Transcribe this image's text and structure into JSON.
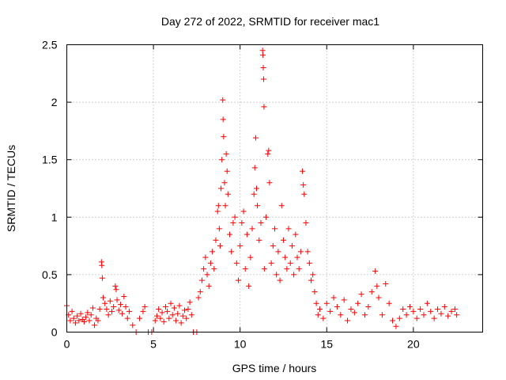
{
  "chart_data": {
    "type": "scatter",
    "title": "Day 272 of 2022, SRMTID for receiver mac1",
    "xlabel": "GPS time / hours",
    "ylabel": "SRMTID / TECUs",
    "xlim": [
      0,
      24
    ],
    "ylim": [
      0,
      2.5
    ],
    "xticks": [
      0,
      5,
      10,
      15,
      20
    ],
    "xtick_labels": [
      "0",
      "5",
      "10",
      "15",
      "20"
    ],
    "yticks": [
      0,
      0.5,
      1,
      1.5,
      2,
      2.5
    ],
    "ytick_labels": [
      "0",
      "0.5",
      "1",
      "1.5",
      "2",
      "2.5"
    ],
    "grid": true,
    "marker": "+",
    "color": "#ff0000",
    "series": [
      {
        "name": "SRMTID",
        "points": [
          [
            0.0,
            0.23
          ],
          [
            0.1,
            0.15
          ],
          [
            0.2,
            0.1
          ],
          [
            0.3,
            0.18
          ],
          [
            0.4,
            0.12
          ],
          [
            0.5,
            0.08
          ],
          [
            0.6,
            0.14
          ],
          [
            0.7,
            0.1
          ],
          [
            0.8,
            0.16
          ],
          [
            0.9,
            0.11
          ],
          [
            1.0,
            0.09
          ],
          [
            1.1,
            0.13
          ],
          [
            1.2,
            0.17
          ],
          [
            1.3,
            0.1
          ],
          [
            1.4,
            0.15
          ],
          [
            1.5,
            0.21
          ],
          [
            1.6,
            0.06
          ],
          [
            1.7,
            0.12
          ],
          [
            1.8,
            0.1
          ],
          [
            1.9,
            0.2
          ],
          [
            2.0,
            0.61
          ],
          [
            2.02,
            0.58
          ],
          [
            2.05,
            0.47
          ],
          [
            2.1,
            0.3
          ],
          [
            2.2,
            0.25
          ],
          [
            2.3,
            0.2
          ],
          [
            2.4,
            0.15
          ],
          [
            2.5,
            0.27
          ],
          [
            2.6,
            0.18
          ],
          [
            2.7,
            0.22
          ],
          [
            2.8,
            0.4
          ],
          [
            2.85,
            0.37
          ],
          [
            2.9,
            0.28
          ],
          [
            3.0,
            0.19
          ],
          [
            3.1,
            0.24
          ],
          [
            3.2,
            0.16
          ],
          [
            3.3,
            0.31
          ],
          [
            3.4,
            0.22
          ],
          [
            3.5,
            0.12
          ],
          [
            3.6,
            0.18
          ],
          [
            3.8,
            0.06
          ],
          [
            4.0,
            0.0
          ],
          [
            4.2,
            0.12
          ],
          [
            4.4,
            0.18
          ],
          [
            4.5,
            0.22
          ],
          [
            4.7,
            0.0
          ],
          [
            4.9,
            0.0
          ],
          [
            5.1,
            0.1
          ],
          [
            5.2,
            0.14
          ],
          [
            5.3,
            0.2
          ],
          [
            5.4,
            0.12
          ],
          [
            5.5,
            0.17
          ],
          [
            5.6,
            0.09
          ],
          [
            5.7,
            0.22
          ],
          [
            5.8,
            0.18
          ],
          [
            5.9,
            0.12
          ],
          [
            6.0,
            0.25
          ],
          [
            6.1,
            0.15
          ],
          [
            6.2,
            0.21
          ],
          [
            6.3,
            0.1
          ],
          [
            6.4,
            0.16
          ],
          [
            6.5,
            0.23
          ],
          [
            6.6,
            0.08
          ],
          [
            6.7,
            0.14
          ],
          [
            6.8,
            0.19
          ],
          [
            6.9,
            0.12
          ],
          [
            7.0,
            0.2
          ],
          [
            7.1,
            0.26
          ],
          [
            7.2,
            0.15
          ],
          [
            7.3,
            0.0
          ],
          [
            7.5,
            0.0
          ],
          [
            7.6,
            0.3
          ],
          [
            7.7,
            0.35
          ],
          [
            7.8,
            0.45
          ],
          [
            7.9,
            0.55
          ],
          [
            8.0,
            0.65
          ],
          [
            8.1,
            0.5
          ],
          [
            8.2,
            0.4
          ],
          [
            8.3,
            0.6
          ],
          [
            8.4,
            0.7
          ],
          [
            8.5,
            0.55
          ],
          [
            8.6,
            0.8
          ],
          [
            8.7,
            1.05
          ],
          [
            8.75,
            1.1
          ],
          [
            8.8,
            0.9
          ],
          [
            8.85,
            0.75
          ],
          [
            8.9,
            1.25
          ],
          [
            8.95,
            1.5
          ],
          [
            9.0,
            2.02
          ],
          [
            9.02,
            1.85
          ],
          [
            9.05,
            1.7
          ],
          [
            9.1,
            1.3
          ],
          [
            9.15,
            1.1
          ],
          [
            9.2,
            1.55
          ],
          [
            9.25,
            1.4
          ],
          [
            9.3,
            1.2
          ],
          [
            9.4,
            0.85
          ],
          [
            9.5,
            0.7
          ],
          [
            9.6,
            0.95
          ],
          [
            9.7,
            1.0
          ],
          [
            9.8,
            0.6
          ],
          [
            9.9,
            0.45
          ],
          [
            10.0,
            0.75
          ],
          [
            10.1,
            0.95
          ],
          [
            10.2,
            1.05
          ],
          [
            10.3,
            0.55
          ],
          [
            10.4,
            0.85
          ],
          [
            10.5,
            0.4
          ],
          [
            10.6,
            0.65
          ],
          [
            10.7,
            0.9
          ],
          [
            10.8,
            1.2
          ],
          [
            10.85,
            1.43
          ],
          [
            10.9,
            1.69
          ],
          [
            10.95,
            1.25
          ],
          [
            11.0,
            1.1
          ],
          [
            11.1,
            0.8
          ],
          [
            11.2,
            0.95
          ],
          [
            11.3,
            2.45
          ],
          [
            11.32,
            2.41
          ],
          [
            11.34,
            2.3
          ],
          [
            11.36,
            2.2
          ],
          [
            11.38,
            1.96
          ],
          [
            11.4,
            0.55
          ],
          [
            11.5,
            1.0
          ],
          [
            11.6,
            1.55
          ],
          [
            11.65,
            1.58
          ],
          [
            11.7,
            1.3
          ],
          [
            11.8,
            0.6
          ],
          [
            11.9,
            0.75
          ],
          [
            12.0,
            0.9
          ],
          [
            12.1,
            0.5
          ],
          [
            12.2,
            0.7
          ],
          [
            12.3,
            0.45
          ],
          [
            12.4,
            1.1
          ],
          [
            12.5,
            0.8
          ],
          [
            12.6,
            0.65
          ],
          [
            12.7,
            0.55
          ],
          [
            12.8,
            0.9
          ],
          [
            12.9,
            0.6
          ],
          [
            13.0,
            0.75
          ],
          [
            13.1,
            0.5
          ],
          [
            13.2,
            0.85
          ],
          [
            13.3,
            0.65
          ],
          [
            13.4,
            0.55
          ],
          [
            13.5,
            0.7
          ],
          [
            13.6,
            1.4
          ],
          [
            13.65,
            1.28
          ],
          [
            13.7,
            1.2
          ],
          [
            13.8,
            0.95
          ],
          [
            13.9,
            0.7
          ],
          [
            14.0,
            0.6
          ],
          [
            14.1,
            0.45
          ],
          [
            14.2,
            0.5
          ],
          [
            14.3,
            0.35
          ],
          [
            14.4,
            0.25
          ],
          [
            14.5,
            0.15
          ],
          [
            14.6,
            0.2
          ],
          [
            14.8,
            0.12
          ],
          [
            15.0,
            0.25
          ],
          [
            15.2,
            0.18
          ],
          [
            15.4,
            0.3
          ],
          [
            15.6,
            0.22
          ],
          [
            15.8,
            0.15
          ],
          [
            16.0,
            0.28
          ],
          [
            16.2,
            0.1
          ],
          [
            16.4,
            0.2
          ],
          [
            16.6,
            0.17
          ],
          [
            16.8,
            0.25
          ],
          [
            17.0,
            0.33
          ],
          [
            17.2,
            0.15
          ],
          [
            17.4,
            0.22
          ],
          [
            17.6,
            0.35
          ],
          [
            17.8,
            0.53
          ],
          [
            17.9,
            0.4
          ],
          [
            18.0,
            0.3
          ],
          [
            18.2,
            0.15
          ],
          [
            18.4,
            0.42
          ],
          [
            18.6,
            0.25
          ],
          [
            18.8,
            0.1
          ],
          [
            19.0,
            0.05
          ],
          [
            19.2,
            0.12
          ],
          [
            19.4,
            0.2
          ],
          [
            19.6,
            0.15
          ],
          [
            19.8,
            0.22
          ],
          [
            20.0,
            0.18
          ],
          [
            20.2,
            0.12
          ],
          [
            20.4,
            0.2
          ],
          [
            20.6,
            0.15
          ],
          [
            20.8,
            0.25
          ],
          [
            21.0,
            0.18
          ],
          [
            21.2,
            0.12
          ],
          [
            21.4,
            0.2
          ],
          [
            21.6,
            0.16
          ],
          [
            21.8,
            0.22
          ],
          [
            22.0,
            0.14
          ],
          [
            22.2,
            0.18
          ],
          [
            22.4,
            0.2
          ],
          [
            22.5,
            0.15
          ]
        ]
      }
    ]
  }
}
